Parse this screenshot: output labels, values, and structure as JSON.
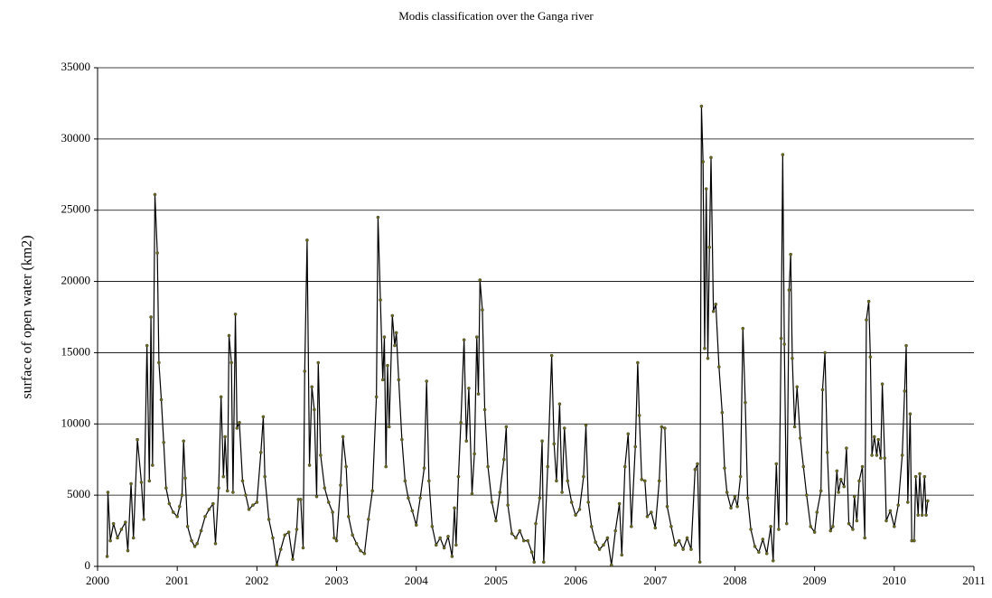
{
  "chart_data": {
    "type": "line",
    "title": "Modis classification over the Ganga river",
    "y_label": "surface of open water (km2)",
    "color": "#000000",
    "marker_color": "#6b6b1a",
    "xlim": [
      2000,
      2011
    ],
    "xticks": [
      2000,
      2001,
      2002,
      2003,
      2004,
      2005,
      2006,
      2007,
      2008,
      2009,
      2010,
      2011
    ],
    "ylim": [
      0,
      35000
    ],
    "yticks": [
      0,
      5000,
      10000,
      15000,
      20000,
      25000,
      30000,
      35000
    ],
    "grid": true,
    "x": [
      2000.12,
      2000.13,
      2000.16,
      2000.2,
      2000.25,
      2000.3,
      2000.35,
      2000.38,
      2000.42,
      2000.45,
      2000.5,
      2000.55,
      2000.58,
      2000.62,
      2000.65,
      2000.67,
      2000.69,
      2000.72,
      2000.75,
      2000.77,
      2000.8,
      2000.83,
      2000.86,
      2000.9,
      2000.95,
      2001.0,
      2001.03,
      2001.06,
      2001.08,
      2001.1,
      2001.13,
      2001.18,
      2001.22,
      2001.25,
      2001.3,
      2001.35,
      2001.4,
      2001.45,
      2001.48,
      2001.52,
      2001.55,
      2001.58,
      2001.6,
      2001.63,
      2001.65,
      2001.68,
      2001.7,
      2001.73,
      2001.75,
      2001.78,
      2001.82,
      2001.86,
      2001.9,
      2001.95,
      2002.0,
      2002.05,
      2002.08,
      2002.1,
      2002.15,
      2002.2,
      2002.25,
      2002.3,
      2002.35,
      2002.4,
      2002.45,
      2002.5,
      2002.52,
      2002.55,
      2002.58,
      2002.6,
      2002.63,
      2002.66,
      2002.69,
      2002.72,
      2002.75,
      2002.77,
      2002.8,
      2002.85,
      2002.9,
      2002.95,
      2002.97,
      2003.0,
      2003.05,
      2003.08,
      2003.12,
      2003.15,
      2003.2,
      2003.25,
      2003.3,
      2003.35,
      2003.4,
      2003.45,
      2003.5,
      2003.52,
      2003.55,
      2003.58,
      2003.6,
      2003.62,
      2003.64,
      2003.66,
      2003.7,
      2003.73,
      2003.75,
      2003.78,
      2003.82,
      2003.86,
      2003.9,
      2003.95,
      2004.0,
      2004.05,
      2004.1,
      2004.13,
      2004.16,
      2004.2,
      2004.25,
      2004.3,
      2004.35,
      2004.4,
      2004.45,
      2004.48,
      2004.5,
      2004.53,
      2004.56,
      2004.6,
      2004.63,
      2004.66,
      2004.7,
      2004.73,
      2004.76,
      2004.78,
      2004.8,
      2004.83,
      2004.86,
      2004.9,
      2004.95,
      2005.0,
      2005.05,
      2005.1,
      2005.13,
      2005.15,
      2005.2,
      2005.25,
      2005.3,
      2005.35,
      2005.4,
      2005.45,
      2005.48,
      2005.5,
      2005.55,
      2005.58,
      2005.6,
      2005.65,
      2005.7,
      2005.73,
      2005.76,
      2005.8,
      2005.83,
      2005.86,
      2005.9,
      2005.95,
      2006.0,
      2006.05,
      2006.1,
      2006.13,
      2006.16,
      2006.2,
      2006.25,
      2006.3,
      2006.35,
      2006.4,
      2006.45,
      2006.5,
      2006.55,
      2006.58,
      2006.62,
      2006.66,
      2006.7,
      2006.75,
      2006.78,
      2006.8,
      2006.83,
      2006.87,
      2006.9,
      2006.95,
      2007.0,
      2007.05,
      2007.08,
      2007.12,
      2007.15,
      2007.2,
      2007.25,
      2007.3,
      2007.35,
      2007.4,
      2007.45,
      2007.5,
      2007.53,
      2007.56,
      2007.58,
      2007.6,
      2007.62,
      2007.64,
      2007.66,
      2007.68,
      2007.7,
      2007.73,
      2007.76,
      2007.8,
      2007.84,
      2007.87,
      2007.9,
      2007.95,
      2008.0,
      2008.03,
      2008.07,
      2008.1,
      2008.13,
      2008.16,
      2008.2,
      2008.25,
      2008.3,
      2008.35,
      2008.4,
      2008.45,
      2008.48,
      2008.52,
      2008.55,
      2008.58,
      2008.6,
      2008.62,
      2008.65,
      2008.68,
      2008.7,
      2008.72,
      2008.75,
      2008.78,
      2008.82,
      2008.86,
      2008.9,
      2008.95,
      2009.0,
      2009.03,
      2009.08,
      2009.1,
      2009.13,
      2009.16,
      2009.2,
      2009.23,
      2009.28,
      2009.3,
      2009.33,
      2009.37,
      2009.4,
      2009.43,
      2009.48,
      2009.5,
      2009.53,
      2009.56,
      2009.6,
      2009.63,
      2009.65,
      2009.68,
      2009.7,
      2009.72,
      2009.75,
      2009.78,
      2009.8,
      2009.83,
      2009.85,
      2009.88,
      2009.9,
      2009.95,
      2010.0,
      2010.05,
      2010.1,
      2010.13,
      2010.15,
      2010.17,
      2010.2,
      2010.22,
      2010.25,
      2010.27,
      2010.3,
      2010.32,
      2010.35,
      2010.38,
      2010.4,
      2010.42
    ],
    "values": [
      700,
      5200,
      1800,
      3000,
      2000,
      2600,
      3100,
      1100,
      5800,
      2000,
      8900,
      5900,
      3300,
      15500,
      6000,
      17500,
      7100,
      26100,
      22000,
      14300,
      11700,
      8700,
      5500,
      4400,
      3800,
      3500,
      4200,
      5000,
      8800,
      6200,
      2800,
      1800,
      1400,
      1600,
      2500,
      3500,
      4000,
      4400,
      1600,
      5500,
      11900,
      6300,
      9100,
      5300,
      16200,
      14300,
      5200,
      17700,
      9700,
      10100,
      6000,
      5000,
      4000,
      4300,
      4500,
      8000,
      10500,
      6300,
      3300,
      2000,
      100,
      1200,
      2200,
      2400,
      500,
      2600,
      4700,
      4700,
      1300,
      13700,
      22900,
      7100,
      12600,
      11000,
      4900,
      14300,
      7800,
      5500,
      4500,
      3800,
      2000,
      1800,
      5700,
      9100,
      7000,
      3500,
      2200,
      1600,
      1100,
      900,
      3300,
      5300,
      11900,
      24500,
      18700,
      13100,
      16100,
      7000,
      14100,
      9800,
      17600,
      15500,
      16400,
      13100,
      8900,
      6000,
      4800,
      3900,
      2900,
      4800,
      6900,
      13000,
      6000,
      2800,
      1500,
      2000,
      1300,
      2100,
      700,
      4100,
      1500,
      6300,
      10100,
      15900,
      8800,
      12500,
      5100,
      7900,
      16100,
      12100,
      20100,
      18000,
      11000,
      7000,
      4500,
      3200,
      5200,
      7500,
      9800,
      4300,
      2300,
      2000,
      2500,
      1800,
      1800,
      1000,
      300,
      3000,
      4800,
      8800,
      300,
      7000,
      14800,
      8600,
      6000,
      11400,
      5200,
      9700,
      6000,
      4500,
      3600,
      4000,
      6300,
      9900,
      4500,
      2800,
      1700,
      1200,
      1500,
      2000,
      100,
      2500,
      4400,
      800,
      7000,
      9300,
      2800,
      8400,
      14300,
      10600,
      6100,
      6000,
      3500,
      3800,
      2700,
      6000,
      9800,
      9700,
      4200,
      2800,
      1500,
      1800,
      1200,
      2000,
      1200,
      6800,
      7200,
      300,
      32300,
      28400,
      15300,
      26500,
      14600,
      22400,
      28700,
      17900,
      18400,
      14000,
      10800,
      6900,
      5200,
      4100,
      4900,
      4200,
      6300,
      16700,
      11500,
      4800,
      2600,
      1400,
      1000,
      1900,
      900,
      2800,
      400,
      7200,
      2600,
      16000,
      28900,
      15600,
      3000,
      19400,
      21900,
      14600,
      9800,
      12600,
      9000,
      7000,
      5000,
      2800,
      2400,
      3800,
      5300,
      12400,
      15000,
      8000,
      2500,
      2800,
      6700,
      5200,
      6100,
      5600,
      8300,
      3000,
      2600,
      4900,
      3200,
      6000,
      7000,
      2000,
      17300,
      18600,
      14700,
      7800,
      9100,
      7800,
      8900,
      7600,
      12800,
      7600,
      3200,
      3900,
      2800,
      4300,
      7800,
      12300,
      15500,
      4500,
      10700,
      1800,
      1800,
      6300,
      3600,
      6500,
      3600,
      6300,
      3600,
      4600
    ]
  }
}
